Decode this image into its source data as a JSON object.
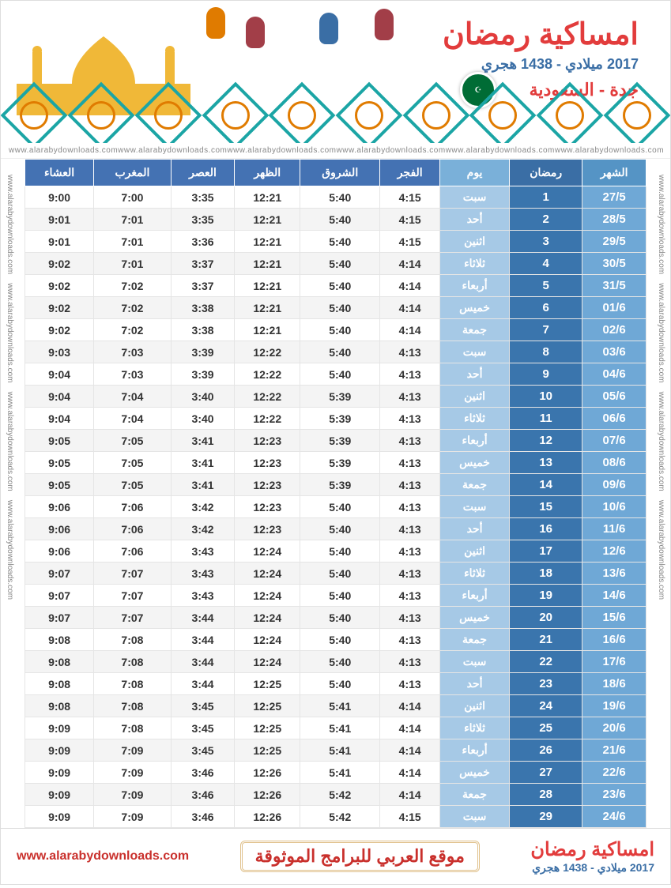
{
  "header": {
    "title": "امساكية رمضان",
    "subtitle": "2017 ميلادي - 1438 هجري",
    "location": "جدة - السعودية",
    "flag_color": "#006c35",
    "watermark": "www.alarabydownloads.com"
  },
  "table": {
    "headers": {
      "month": "الشهر",
      "ramadan": "رمضان",
      "day": "يوم",
      "fajr": "الفجر",
      "shuruq": "الشروق",
      "dhuhr": "الظهر",
      "asr": "العصر",
      "maghrib": "المغرب",
      "isha": "العشاء"
    },
    "header_colors": {
      "month": "#5594c5",
      "ramadan": "#3a6ea5",
      "day": "#7ab0d9",
      "time": "#4472b3"
    },
    "cell_colors": {
      "month_bg": "#6fa8d6",
      "ramadan_bg": "#3a75ad",
      "day_bg": "#a6c9e6",
      "row_even_bg": "#f4f4f4",
      "row_odd_bg": "#ffffff",
      "text": "#333333",
      "white": "#ffffff"
    },
    "rows": [
      {
        "month": "27/5",
        "ram": "1",
        "day": "سبت",
        "fajr": "4:15",
        "shuruq": "5:40",
        "dhuhr": "12:21",
        "asr": "3:35",
        "maghrib": "7:00",
        "isha": "9:00"
      },
      {
        "month": "28/5",
        "ram": "2",
        "day": "أحد",
        "fajr": "4:15",
        "shuruq": "5:40",
        "dhuhr": "12:21",
        "asr": "3:35",
        "maghrib": "7:01",
        "isha": "9:01"
      },
      {
        "month": "29/5",
        "ram": "3",
        "day": "اثنين",
        "fajr": "4:15",
        "shuruq": "5:40",
        "dhuhr": "12:21",
        "asr": "3:36",
        "maghrib": "7:01",
        "isha": "9:01"
      },
      {
        "month": "30/5",
        "ram": "4",
        "day": "ثلاثاء",
        "fajr": "4:14",
        "shuruq": "5:40",
        "dhuhr": "12:21",
        "asr": "3:37",
        "maghrib": "7:01",
        "isha": "9:02"
      },
      {
        "month": "31/5",
        "ram": "5",
        "day": "أربعاء",
        "fajr": "4:14",
        "shuruq": "5:40",
        "dhuhr": "12:21",
        "asr": "3:37",
        "maghrib": "7:02",
        "isha": "9:02"
      },
      {
        "month": "01/6",
        "ram": "6",
        "day": "خميس",
        "fajr": "4:14",
        "shuruq": "5:40",
        "dhuhr": "12:21",
        "asr": "3:38",
        "maghrib": "7:02",
        "isha": "9:02"
      },
      {
        "month": "02/6",
        "ram": "7",
        "day": "جمعة",
        "fajr": "4:14",
        "shuruq": "5:40",
        "dhuhr": "12:21",
        "asr": "3:38",
        "maghrib": "7:02",
        "isha": "9:02"
      },
      {
        "month": "03/6",
        "ram": "8",
        "day": "سبت",
        "fajr": "4:13",
        "shuruq": "5:40",
        "dhuhr": "12:22",
        "asr": "3:39",
        "maghrib": "7:03",
        "isha": "9:03"
      },
      {
        "month": "04/6",
        "ram": "9",
        "day": "أحد",
        "fajr": "4:13",
        "shuruq": "5:40",
        "dhuhr": "12:22",
        "asr": "3:39",
        "maghrib": "7:03",
        "isha": "9:04"
      },
      {
        "month": "05/6",
        "ram": "10",
        "day": "اثنين",
        "fajr": "4:13",
        "shuruq": "5:39",
        "dhuhr": "12:22",
        "asr": "3:40",
        "maghrib": "7:04",
        "isha": "9:04"
      },
      {
        "month": "06/6",
        "ram": "11",
        "day": "ثلاثاء",
        "fajr": "4:13",
        "shuruq": "5:39",
        "dhuhr": "12:22",
        "asr": "3:40",
        "maghrib": "7:04",
        "isha": "9:04"
      },
      {
        "month": "07/6",
        "ram": "12",
        "day": "أربعاء",
        "fajr": "4:13",
        "shuruq": "5:39",
        "dhuhr": "12:23",
        "asr": "3:41",
        "maghrib": "7:05",
        "isha": "9:05"
      },
      {
        "month": "08/6",
        "ram": "13",
        "day": "خميس",
        "fajr": "4:13",
        "shuruq": "5:39",
        "dhuhr": "12:23",
        "asr": "3:41",
        "maghrib": "7:05",
        "isha": "9:05"
      },
      {
        "month": "09/6",
        "ram": "14",
        "day": "جمعة",
        "fajr": "4:13",
        "shuruq": "5:39",
        "dhuhr": "12:23",
        "asr": "3:41",
        "maghrib": "7:05",
        "isha": "9:05"
      },
      {
        "month": "10/6",
        "ram": "15",
        "day": "سبت",
        "fajr": "4:13",
        "shuruq": "5:40",
        "dhuhr": "12:23",
        "asr": "3:42",
        "maghrib": "7:06",
        "isha": "9:06"
      },
      {
        "month": "11/6",
        "ram": "16",
        "day": "أحد",
        "fajr": "4:13",
        "shuruq": "5:40",
        "dhuhr": "12:23",
        "asr": "3:42",
        "maghrib": "7:06",
        "isha": "9:06"
      },
      {
        "month": "12/6",
        "ram": "17",
        "day": "اثنين",
        "fajr": "4:13",
        "shuruq": "5:40",
        "dhuhr": "12:24",
        "asr": "3:43",
        "maghrib": "7:06",
        "isha": "9:06"
      },
      {
        "month": "13/6",
        "ram": "18",
        "day": "ثلاثاء",
        "fajr": "4:13",
        "shuruq": "5:40",
        "dhuhr": "12:24",
        "asr": "3:43",
        "maghrib": "7:07",
        "isha": "9:07"
      },
      {
        "month": "14/6",
        "ram": "19",
        "day": "أربعاء",
        "fajr": "4:13",
        "shuruq": "5:40",
        "dhuhr": "12:24",
        "asr": "3:43",
        "maghrib": "7:07",
        "isha": "9:07"
      },
      {
        "month": "15/6",
        "ram": "20",
        "day": "خميس",
        "fajr": "4:13",
        "shuruq": "5:40",
        "dhuhr": "12:24",
        "asr": "3:44",
        "maghrib": "7:07",
        "isha": "9:07"
      },
      {
        "month": "16/6",
        "ram": "21",
        "day": "جمعة",
        "fajr": "4:13",
        "shuruq": "5:40",
        "dhuhr": "12:24",
        "asr": "3:44",
        "maghrib": "7:08",
        "isha": "9:08"
      },
      {
        "month": "17/6",
        "ram": "22",
        "day": "سبت",
        "fajr": "4:13",
        "shuruq": "5:40",
        "dhuhr": "12:24",
        "asr": "3:44",
        "maghrib": "7:08",
        "isha": "9:08"
      },
      {
        "month": "18/6",
        "ram": "23",
        "day": "أحد",
        "fajr": "4:13",
        "shuruq": "5:40",
        "dhuhr": "12:25",
        "asr": "3:44",
        "maghrib": "7:08",
        "isha": "9:08"
      },
      {
        "month": "19/6",
        "ram": "24",
        "day": "اثنين",
        "fajr": "4:14",
        "shuruq": "5:41",
        "dhuhr": "12:25",
        "asr": "3:45",
        "maghrib": "7:08",
        "isha": "9:08"
      },
      {
        "month": "20/6",
        "ram": "25",
        "day": "ثلاثاء",
        "fajr": "4:14",
        "shuruq": "5:41",
        "dhuhr": "12:25",
        "asr": "3:45",
        "maghrib": "7:08",
        "isha": "9:09"
      },
      {
        "month": "21/6",
        "ram": "26",
        "day": "أربعاء",
        "fajr": "4:14",
        "shuruq": "5:41",
        "dhuhr": "12:25",
        "asr": "3:45",
        "maghrib": "7:09",
        "isha": "9:09"
      },
      {
        "month": "22/6",
        "ram": "27",
        "day": "خميس",
        "fajr": "4:14",
        "shuruq": "5:41",
        "dhuhr": "12:26",
        "asr": "3:46",
        "maghrib": "7:09",
        "isha": "9:09"
      },
      {
        "month": "23/6",
        "ram": "28",
        "day": "جمعة",
        "fajr": "4:14",
        "shuruq": "5:42",
        "dhuhr": "12:26",
        "asr": "3:46",
        "maghrib": "7:09",
        "isha": "9:09"
      },
      {
        "month": "24/6",
        "ram": "29",
        "day": "سبت",
        "fajr": "4:15",
        "shuruq": "5:42",
        "dhuhr": "12:26",
        "asr": "3:46",
        "maghrib": "7:09",
        "isha": "9:09"
      }
    ]
  },
  "footer": {
    "title": "امساكية رمضان",
    "subtitle": "2017 ميلادي - 1438 هجري",
    "center": "موقع العربي للبرامج الموثوقة",
    "url": "www.alarabydownloads.com"
  }
}
